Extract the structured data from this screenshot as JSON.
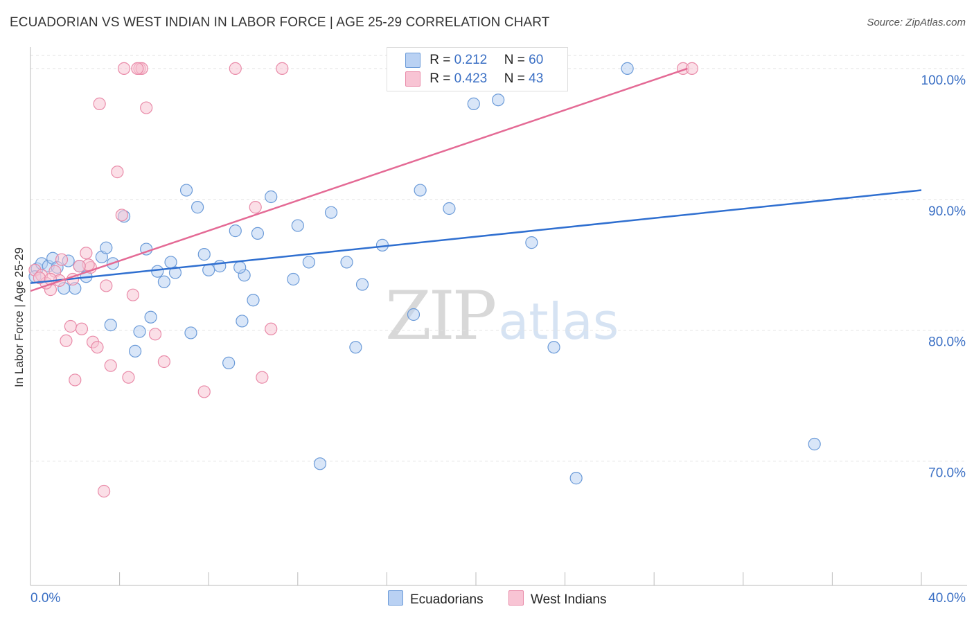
{
  "header": {
    "title": "ECUADORIAN VS WEST INDIAN IN LABOR FORCE | AGE 25-29 CORRELATION CHART",
    "source": "Source: ZipAtlas.com"
  },
  "watermark": {
    "zip": "ZIP",
    "atlas": "atlas"
  },
  "legend": {
    "rows": [
      {
        "r_label": "R =",
        "r_value": "0.212",
        "n_label": "N =",
        "n_value": "60"
      },
      {
        "r_label": "R =",
        "r_value": "0.423",
        "n_label": "N =",
        "n_value": "43"
      }
    ],
    "bottom": [
      "Ecuadorians",
      "West Indians"
    ]
  },
  "colors": {
    "blue_fill": "#b9d1f3",
    "blue_stroke": "#6a9ad8",
    "blue_line": "#2f6fd0",
    "pink_fill": "#f8c4d4",
    "pink_stroke": "#e98aa8",
    "pink_line": "#e46a95",
    "axis_text": "#3a6fc4",
    "grid": "#e2e2e2"
  },
  "chart_data": {
    "type": "scatter",
    "title": "ECUADORIAN VS WEST INDIAN IN LABOR FORCE | AGE 25-29 CORRELATION CHART",
    "xlabel": "",
    "ylabel": "In Labor Force | Age 25-29",
    "xlim": [
      0,
      40
    ],
    "ylim": [
      60.5,
      101
    ],
    "x_tick_labels": [
      "0.0%",
      "40.0%"
    ],
    "y_ticks": [
      70,
      80,
      90,
      100
    ],
    "y_tick_labels": [
      "70.0%",
      "80.0%",
      "90.0%",
      "100.0%"
    ],
    "grid": true,
    "series": [
      {
        "name": "Ecuadorians",
        "r": 0.212,
        "n": 60,
        "trend": [
          [
            0,
            83.6
          ],
          [
            40,
            90.7
          ]
        ],
        "points": [
          [
            0.3,
            84.7
          ],
          [
            0.5,
            85.1
          ],
          [
            0.8,
            84.9
          ],
          [
            1.0,
            85.5
          ],
          [
            1.2,
            84.8
          ],
          [
            1.7,
            85.3
          ],
          [
            2.0,
            83.2
          ],
          [
            2.5,
            84.1
          ],
          [
            3.2,
            85.6
          ],
          [
            3.4,
            86.3
          ],
          [
            3.7,
            85.1
          ],
          [
            4.2,
            88.7
          ],
          [
            5.2,
            86.2
          ],
          [
            5.7,
            84.5
          ],
          [
            6.0,
            83.7
          ],
          [
            6.3,
            85.2
          ],
          [
            6.5,
            84.4
          ],
          [
            7.0,
            90.7
          ],
          [
            7.2,
            79.8
          ],
          [
            7.5,
            89.4
          ],
          [
            7.8,
            85.8
          ],
          [
            8.0,
            84.6
          ],
          [
            8.5,
            84.9
          ],
          [
            9.2,
            87.6
          ],
          [
            9.6,
            84.2
          ],
          [
            10.0,
            82.3
          ],
          [
            10.2,
            87.4
          ],
          [
            10.8,
            90.2
          ],
          [
            11.8,
            83.9
          ],
          [
            12.0,
            88.0
          ],
          [
            12.5,
            85.2
          ],
          [
            13.0,
            69.8
          ],
          [
            13.5,
            89.0
          ],
          [
            14.2,
            85.2
          ],
          [
            14.6,
            78.7
          ],
          [
            14.9,
            83.5
          ],
          [
            15.8,
            86.5
          ],
          [
            17.2,
            81.2
          ],
          [
            17.5,
            90.7
          ],
          [
            18.0,
            99.6
          ],
          [
            18.8,
            89.3
          ],
          [
            20.0,
            99.6
          ],
          [
            21.0,
            97.6
          ],
          [
            22.5,
            86.7
          ],
          [
            23.5,
            78.7
          ],
          [
            24.5,
            68.7
          ],
          [
            26.8,
            100.0
          ],
          [
            35.2,
            71.3
          ],
          [
            1.5,
            83.2
          ],
          [
            2.2,
            84.9
          ],
          [
            3.6,
            80.4
          ],
          [
            4.7,
            78.4
          ],
          [
            5.4,
            81.0
          ],
          [
            9.5,
            80.7
          ],
          [
            8.9,
            77.5
          ],
          [
            9.4,
            84.8
          ],
          [
            4.9,
            79.9
          ],
          [
            0.2,
            84.1
          ],
          [
            20.5,
            100.0
          ],
          [
            19.9,
            97.3
          ]
        ]
      },
      {
        "name": "West Indians",
        "r": 0.423,
        "n": 43,
        "trend": [
          [
            0,
            83.0
          ],
          [
            29.5,
            100.0
          ]
        ],
        "points": [
          [
            0.2,
            84.6
          ],
          [
            0.5,
            84.2
          ],
          [
            0.9,
            83.1
          ],
          [
            1.1,
            84.5
          ],
          [
            1.3,
            83.8
          ],
          [
            1.6,
            79.2
          ],
          [
            1.8,
            80.3
          ],
          [
            2.0,
            76.2
          ],
          [
            2.3,
            80.1
          ],
          [
            2.5,
            85.9
          ],
          [
            2.8,
            79.1
          ],
          [
            3.0,
            78.7
          ],
          [
            3.1,
            97.3
          ],
          [
            3.3,
            67.7
          ],
          [
            3.6,
            77.3
          ],
          [
            3.9,
            92.1
          ],
          [
            4.1,
            88.8
          ],
          [
            4.4,
            76.4
          ],
          [
            4.6,
            82.7
          ],
          [
            4.9,
            100.0
          ],
          [
            5.0,
            100.0
          ],
          [
            5.2,
            97.0
          ],
          [
            5.6,
            79.7
          ],
          [
            6.0,
            77.6
          ],
          [
            7.8,
            75.3
          ],
          [
            9.2,
            100.0
          ],
          [
            10.1,
            89.4
          ],
          [
            10.4,
            76.4
          ],
          [
            10.8,
            80.1
          ],
          [
            11.3,
            100.0
          ],
          [
            29.3,
            100.0
          ],
          [
            29.7,
            100.0
          ],
          [
            4.2,
            100.0
          ],
          [
            4.8,
            100.0
          ],
          [
            1.9,
            83.9
          ],
          [
            2.7,
            84.8
          ],
          [
            3.4,
            83.4
          ],
          [
            0.7,
            83.6
          ],
          [
            1.4,
            85.4
          ],
          [
            2.6,
            85.0
          ],
          [
            0.4,
            84.0
          ],
          [
            0.9,
            83.9
          ],
          [
            2.2,
            84.9
          ]
        ]
      }
    ]
  }
}
